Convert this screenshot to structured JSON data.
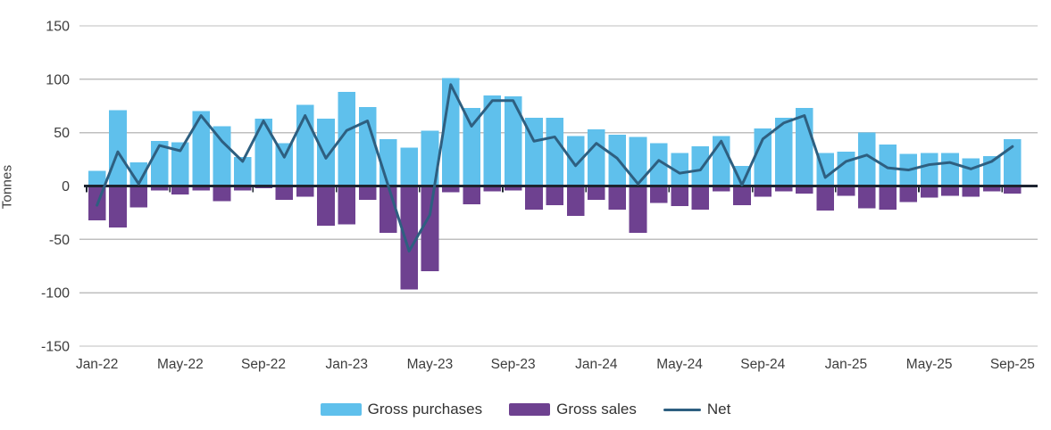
{
  "chart_data": {
    "type": "combo-bar-line",
    "ylabel": "Tonnes",
    "ylim": [
      -150,
      150
    ],
    "ytick_step": 50,
    "yticks": [
      150,
      100,
      50,
      0,
      -50,
      -100,
      -150
    ],
    "xticks": [
      "Jan-22",
      "May-22",
      "Sep-22",
      "Jan-23",
      "May-23",
      "Sep-23",
      "Jan-24",
      "May-24",
      "Sep-24",
      "Jan-25",
      "May-25",
      "Sep-25"
    ],
    "xtick_interval_months": 4,
    "grid": "horizontal",
    "legend_position": "bottom-center",
    "categories": [
      "Jan-22",
      "Feb-22",
      "Mar-22",
      "Apr-22",
      "May-22",
      "Jun-22",
      "Jul-22",
      "Aug-22",
      "Sep-22",
      "Oct-22",
      "Nov-22",
      "Dec-22",
      "Jan-23",
      "Feb-23",
      "Mar-23",
      "Apr-23",
      "May-23",
      "Jun-23",
      "Jul-23",
      "Aug-23",
      "Sep-23",
      "Oct-23",
      "Nov-23",
      "Dec-23",
      "Jan-24",
      "Feb-24",
      "Mar-24",
      "Apr-24",
      "May-24",
      "Jun-24",
      "Jul-24",
      "Aug-24",
      "Sep-24",
      "Oct-24",
      "Nov-24",
      "Dec-24",
      "Jan-25",
      "Feb-25",
      "Mar-25",
      "Apr-25",
      "May-25",
      "Jun-25",
      "Jul-25",
      "Aug-25",
      "Sep-25"
    ],
    "series": [
      {
        "name": "Gross purchases",
        "type": "bar",
        "color": "#5FC0EC",
        "values": [
          14,
          71,
          22,
          42,
          41,
          70,
          56,
          27,
          63,
          40,
          76,
          63,
          88,
          74,
          44,
          36,
          52,
          101,
          73,
          85,
          84,
          64,
          64,
          47,
          53,
          48,
          46,
          40,
          31,
          37,
          47,
          19,
          54,
          64,
          73,
          31,
          32,
          50,
          39,
          30,
          31,
          31,
          26,
          28,
          44
        ]
      },
      {
        "name": "Gross sales",
        "type": "bar",
        "color": "#6E4190",
        "values": [
          -32,
          -39,
          -20,
          -4,
          -8,
          -4,
          -14,
          -4,
          -2,
          -13,
          -10,
          -37,
          -36,
          -13,
          -44,
          -97,
          -80,
          -6,
          -17,
          -5,
          -4,
          -22,
          -18,
          -28,
          -13,
          -22,
          -44,
          -16,
          -19,
          -22,
          -5,
          -18,
          -10,
          -5,
          -7,
          -23,
          -9,
          -21,
          -22,
          -15,
          -11,
          -9,
          -10,
          -5,
          -7
        ]
      },
      {
        "name": "Net",
        "type": "line",
        "color": "#2E5F80",
        "values": [
          -18,
          32,
          2,
          38,
          33,
          66,
          42,
          23,
          61,
          27,
          66,
          26,
          52,
          61,
          0,
          -61,
          -27,
          95,
          56,
          80,
          80,
          42,
          46,
          19,
          40,
          26,
          2,
          24,
          12,
          15,
          42,
          1,
          44,
          59,
          66,
          8,
          23,
          29,
          17,
          15,
          20,
          22,
          16,
          23,
          37
        ]
      }
    ],
    "colors": {
      "gridline": "#BFBFBF",
      "zero_axis": "#1E2430",
      "tick_text": "#3D3D3D"
    }
  }
}
